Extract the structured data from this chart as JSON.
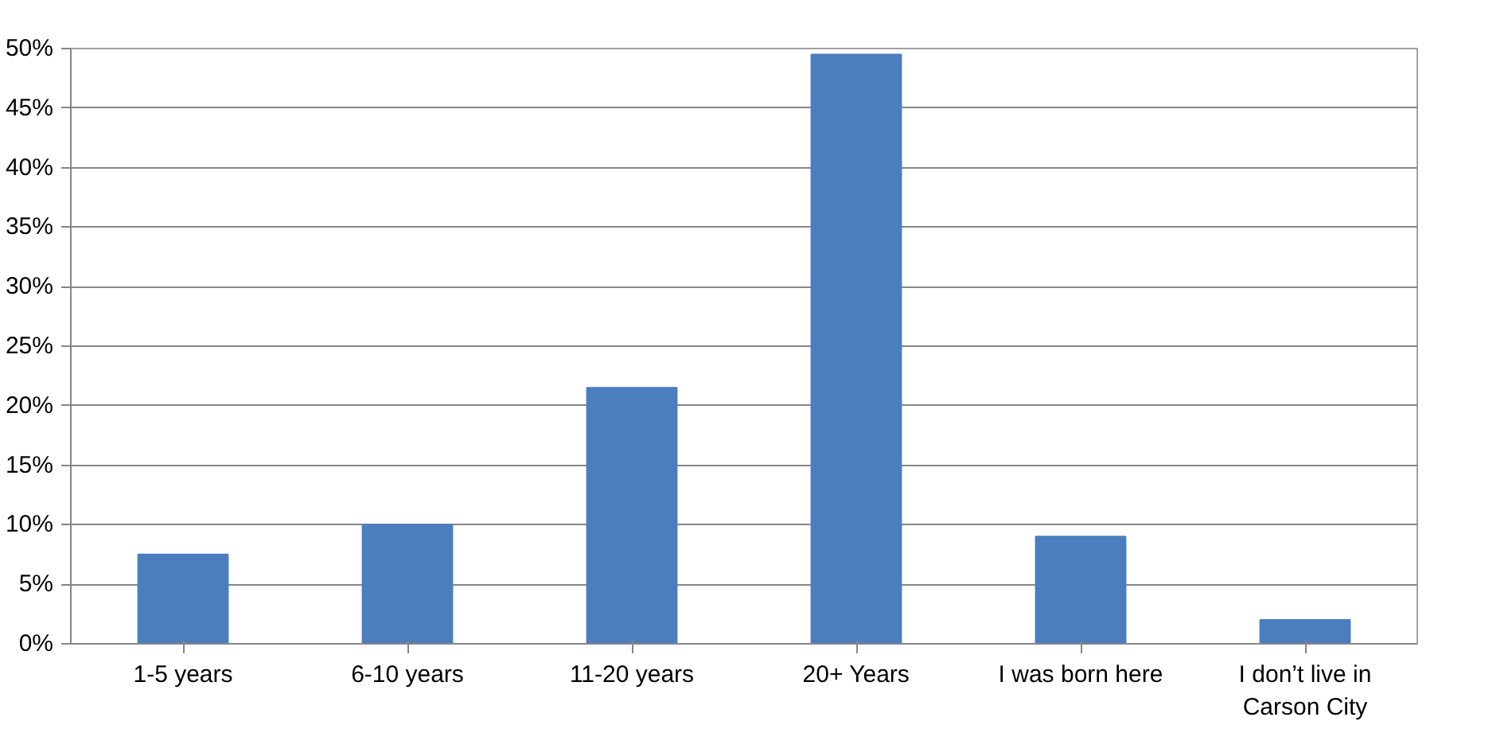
{
  "chart_data": {
    "type": "bar",
    "categories": [
      "1-5 years",
      "6-10 years",
      "11-20 years",
      "20+ Years",
      "I was born here",
      "I don’t live in Carson City"
    ],
    "values": [
      7.5,
      10,
      21.5,
      49.5,
      9,
      2
    ],
    "color": "#4a7ebf",
    "ylim": [
      0,
      50
    ],
    "yticks": [
      {
        "value": 0,
        "label": "0%"
      },
      {
        "value": 5,
        "label": "5%"
      },
      {
        "value": 10,
        "label": "10%"
      },
      {
        "value": 15,
        "label": "15%"
      },
      {
        "value": 20,
        "label": "20%"
      },
      {
        "value": 25,
        "label": "25%"
      },
      {
        "value": 30,
        "label": "30%"
      },
      {
        "value": 35,
        "label": "35%"
      },
      {
        "value": 40,
        "label": "40%"
      },
      {
        "value": 45,
        "label": "45%"
      },
      {
        "value": 50,
        "label": "50%"
      }
    ],
    "grid": "y"
  }
}
